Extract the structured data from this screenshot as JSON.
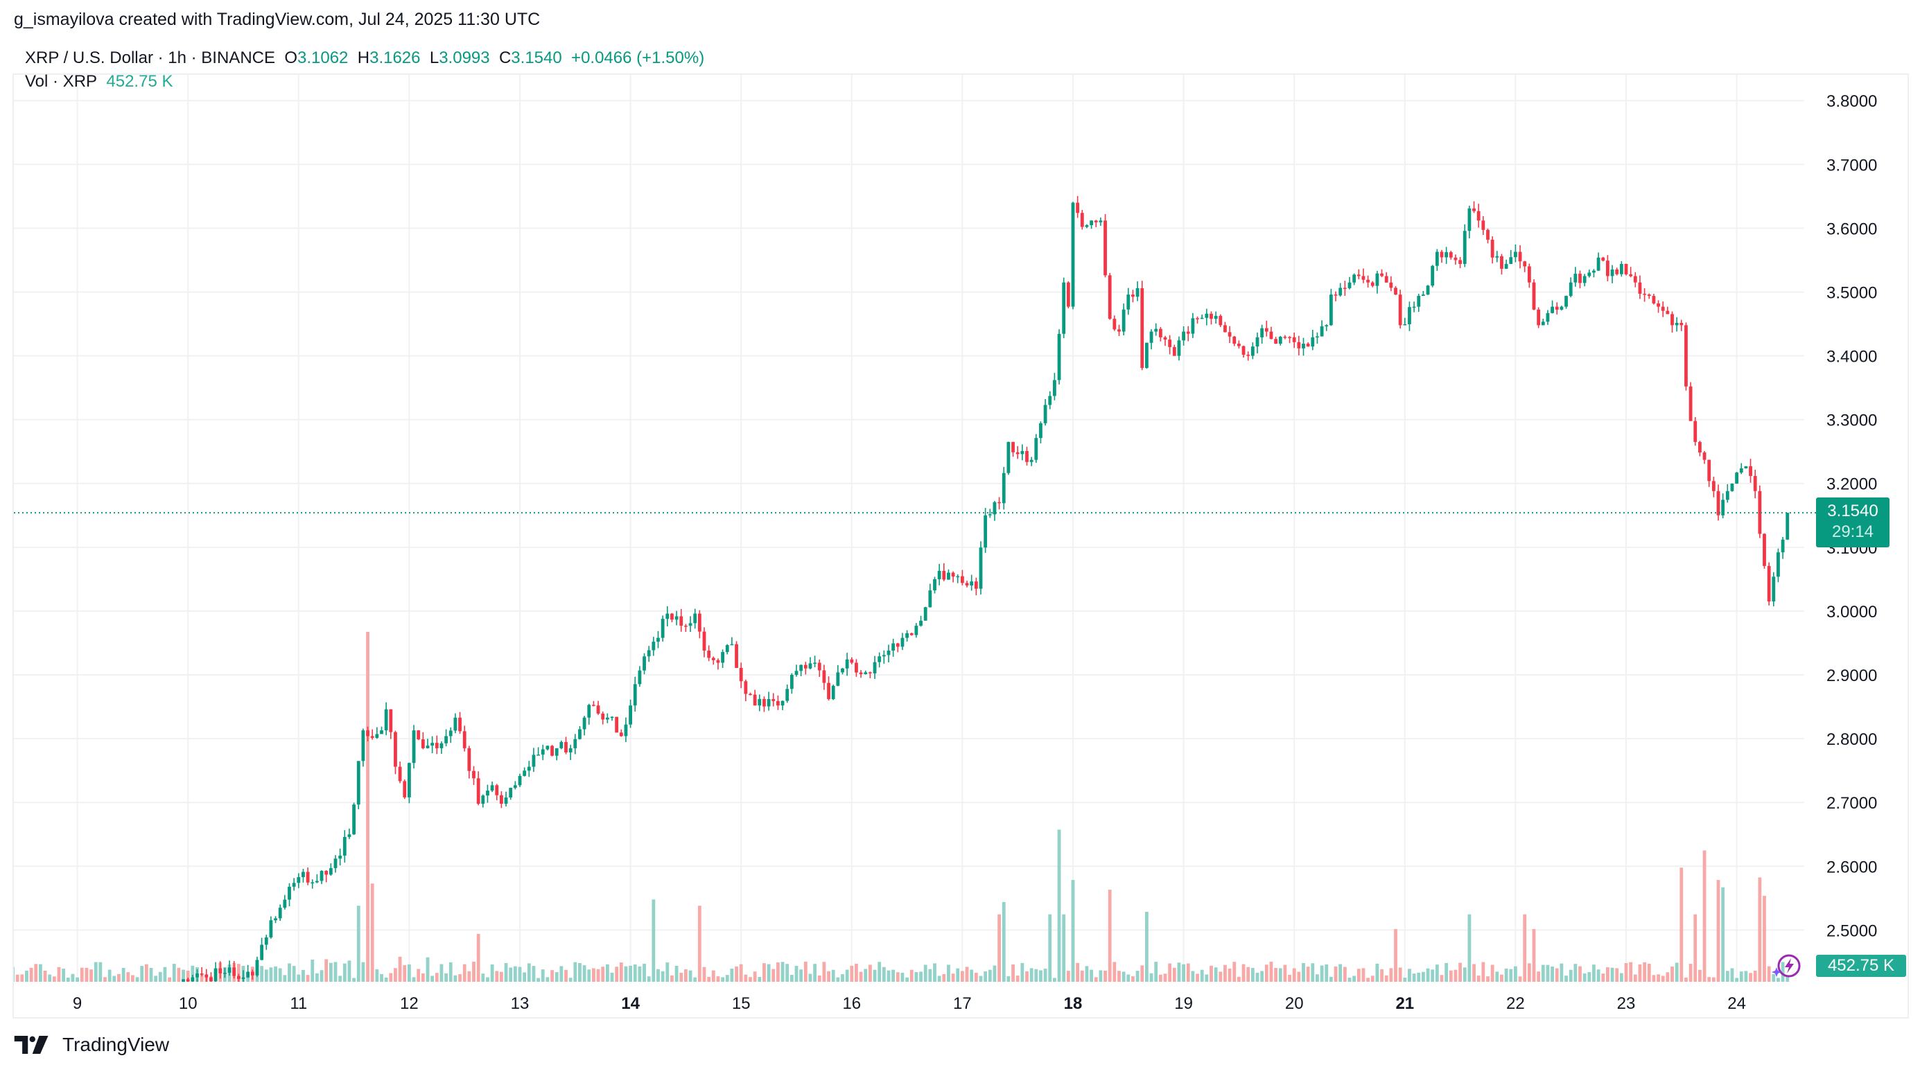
{
  "header": {
    "attribution": "g_ismayilova created with TradingView.com, Jul 24, 2025 11:30 UTC"
  },
  "legend": {
    "symbol": "XRP / U.S. Dollar · 1h · BINANCE",
    "o_label": "O",
    "o": "3.1062",
    "h_label": "H",
    "h": "3.1626",
    "l_label": "L",
    "l": "3.0993",
    "c_label": "C",
    "c": "3.1540",
    "change": "+0.0466 (+1.50%)",
    "vol_label": "Vol · XRP",
    "vol": "452.75 K"
  },
  "price_label": {
    "price": "3.1540",
    "countdown": "29:14"
  },
  "volume_label": "452.75 K",
  "branding": {
    "logo_text": "TradingView"
  },
  "colors": {
    "up": "#089981",
    "down": "#f23645",
    "vol_up": "#92d2c8",
    "vol_down": "#f7a9a7",
    "grid": "#f0f1f3",
    "ai_icon": "#9c27b0"
  },
  "chart_data": {
    "type": "candlestick",
    "interval": "1h",
    "title": "XRP / U.S. Dollar · 1h · BINANCE",
    "y_axis": {
      "position": "right",
      "ticks": [
        "3.8000",
        "3.7000",
        "3.6000",
        "3.5000",
        "3.4000",
        "3.3000",
        "3.2000",
        "3.1000",
        "3.0000",
        "2.9000",
        "2.8000",
        "2.7000",
        "2.6000",
        "2.5000"
      ],
      "range": [
        2.4,
        3.85
      ]
    },
    "x_axis": {
      "ticks": [
        {
          "label": "9",
          "bold": false
        },
        {
          "label": "10",
          "bold": false
        },
        {
          "label": "11",
          "bold": false
        },
        {
          "label": "12",
          "bold": false
        },
        {
          "label": "13",
          "bold": false
        },
        {
          "label": "14",
          "bold": true
        },
        {
          "label": "15",
          "bold": false
        },
        {
          "label": "16",
          "bold": false
        },
        {
          "label": "17",
          "bold": false
        },
        {
          "label": "18",
          "bold": true
        },
        {
          "label": "19",
          "bold": false
        },
        {
          "label": "20",
          "bold": false
        },
        {
          "label": "21",
          "bold": true
        },
        {
          "label": "22",
          "bold": false
        },
        {
          "label": "23",
          "bold": false
        },
        {
          "label": "24",
          "bold": false
        }
      ],
      "range": [
        "07-08 10:00",
        "07-24 11:00"
      ]
    },
    "grid": true,
    "last_close": 3.154,
    "close_path": [
      [
        "07-09 23:00",
        2.423
      ],
      [
        "07-10 08:00",
        2.433
      ],
      [
        "07-10 14:00",
        2.429
      ],
      [
        "07-10 16:00",
        2.477
      ],
      [
        "07-10 20:00",
        2.535
      ],
      [
        "07-11 00:00",
        2.583
      ],
      [
        "07-11 04:00",
        2.577
      ],
      [
        "07-11 08:00",
        2.612
      ],
      [
        "07-11 11:00",
        2.65
      ],
      [
        "07-11 13:00",
        2.765
      ],
      [
        "07-11 14:00",
        2.813
      ],
      [
        "07-11 15:00",
        2.804
      ],
      [
        "07-11 18:00",
        2.813
      ],
      [
        "07-11 19:00",
        2.846
      ],
      [
        "07-11 21:00",
        2.756
      ],
      [
        "07-11 23:00",
        2.708
      ],
      [
        "07-12 01:00",
        2.813
      ],
      [
        "07-12 03:00",
        2.785
      ],
      [
        "07-12 06:00",
        2.785
      ],
      [
        "07-12 08:00",
        2.804
      ],
      [
        "07-12 10:00",
        2.833
      ],
      [
        "07-12 12:00",
        2.785
      ],
      [
        "07-12 15:00",
        2.698
      ],
      [
        "07-12 18:00",
        2.727
      ],
      [
        "07-12 20:00",
        2.698
      ],
      [
        "07-12 23:00",
        2.727
      ],
      [
        "07-13 02:00",
        2.756
      ],
      [
        "07-13 04:00",
        2.775
      ],
      [
        "07-13 08:00",
        2.785
      ],
      [
        "07-13 11:00",
        2.785
      ],
      [
        "07-13 14:00",
        2.833
      ],
      [
        "07-13 16:00",
        2.852
      ],
      [
        "07-13 19:00",
        2.833
      ],
      [
        "07-13 22:00",
        2.804
      ],
      [
        "07-14 00:00",
        2.852
      ],
      [
        "07-14 03:00",
        2.929
      ],
      [
        "07-14 06:00",
        2.958
      ],
      [
        "07-14 08:00",
        2.996
      ],
      [
        "07-14 11:00",
        2.977
      ],
      [
        "07-14 14:00",
        2.996
      ],
      [
        "07-14 16:00",
        2.938
      ],
      [
        "07-14 19:00",
        2.919
      ],
      [
        "07-14 22:00",
        2.948
      ],
      [
        "07-15 00:00",
        2.89
      ],
      [
        "07-15 03:00",
        2.852
      ],
      [
        "07-15 06:00",
        2.862
      ],
      [
        "07-15 08:00",
        2.852
      ],
      [
        "07-15 11:00",
        2.9
      ],
      [
        "07-15 14:00",
        2.91
      ],
      [
        "07-15 16:00",
        2.919
      ],
      [
        "07-15 19:00",
        2.862
      ],
      [
        "07-15 22:00",
        2.91
      ],
      [
        "07-16 00:00",
        2.919
      ],
      [
        "07-16 03:00",
        2.904
      ],
      [
        "07-16 06:00",
        2.929
      ],
      [
        "07-16 08:00",
        2.938
      ],
      [
        "07-16 11:00",
        2.958
      ],
      [
        "07-16 14:00",
        2.977
      ],
      [
        "07-16 16:00",
        3.006
      ],
      [
        "07-16 19:00",
        3.063
      ],
      [
        "07-16 22:00",
        3.054
      ],
      [
        "07-17 00:00",
        3.044
      ],
      [
        "07-17 03:00",
        3.035
      ],
      [
        "07-17 05:00",
        3.15
      ],
      [
        "07-17 08:00",
        3.169
      ],
      [
        "07-17 10:00",
        3.265
      ],
      [
        "07-17 12:00",
        3.246
      ],
      [
        "07-17 15:00",
        3.237
      ],
      [
        "07-17 18:00",
        3.323
      ],
      [
        "07-17 20:00",
        3.362
      ],
      [
        "07-17 22:00",
        3.515
      ],
      [
        "07-17 23:00",
        3.477
      ],
      [
        "07-18 00:00",
        3.64
      ],
      [
        "07-18 02:00",
        3.602
      ],
      [
        "07-18 04:00",
        3.612
      ],
      [
        "07-18 06:00",
        3.612
      ],
      [
        "07-18 08:00",
        3.458
      ],
      [
        "07-18 10:00",
        3.438
      ],
      [
        "07-18 12:00",
        3.496
      ],
      [
        "07-18 14:00",
        3.506
      ],
      [
        "07-18 15:00",
        3.381
      ],
      [
        "07-18 17:00",
        3.438
      ],
      [
        "07-18 19:00",
        3.429
      ],
      [
        "07-18 22:00",
        3.4
      ],
      [
        "07-19 00:00",
        3.438
      ],
      [
        "07-19 03:00",
        3.458
      ],
      [
        "07-19 06:00",
        3.458
      ],
      [
        "07-19 08:00",
        3.448
      ],
      [
        "07-19 11:00",
        3.419
      ],
      [
        "07-19 14:00",
        3.4
      ],
      [
        "07-19 16:00",
        3.429
      ],
      [
        "07-19 18:00",
        3.438
      ],
      [
        "07-19 20:00",
        3.419
      ],
      [
        "07-19 23:00",
        3.429
      ],
      [
        "07-20 02:00",
        3.419
      ],
      [
        "07-20 04:00",
        3.429
      ],
      [
        "07-20 07:00",
        3.448
      ],
      [
        "07-20 08:00",
        3.496
      ],
      [
        "07-20 11:00",
        3.506
      ],
      [
        "07-20 14:00",
        3.525
      ],
      [
        "07-20 16:00",
        3.515
      ],
      [
        "07-20 19:00",
        3.525
      ],
      [
        "07-20 22:00",
        3.496
      ],
      [
        "07-20 23:00",
        3.448
      ],
      [
        "07-21 02:00",
        3.477
      ],
      [
        "07-21 04:00",
        3.496
      ],
      [
        "07-21 07:00",
        3.563
      ],
      [
        "07-21 10:00",
        3.554
      ],
      [
        "07-21 12:00",
        3.544
      ],
      [
        "07-21 14:00",
        3.631
      ],
      [
        "07-21 16:00",
        3.612
      ],
      [
        "07-21 19:00",
        3.554
      ],
      [
        "07-21 22:00",
        3.544
      ],
      [
        "07-22 00:00",
        3.563
      ],
      [
        "07-22 03:00",
        3.515
      ],
      [
        "07-22 05:00",
        3.448
      ],
      [
        "07-22 07:00",
        3.467
      ],
      [
        "07-22 10:00",
        3.477
      ],
      [
        "07-22 12:00",
        3.515
      ],
      [
        "07-22 15:00",
        3.525
      ],
      [
        "07-22 18:00",
        3.554
      ],
      [
        "07-22 20:00",
        3.525
      ],
      [
        "07-22 23:00",
        3.544
      ],
      [
        "07-23 02:00",
        3.515
      ],
      [
        "07-23 04:00",
        3.496
      ],
      [
        "07-23 07:00",
        3.477
      ],
      [
        "07-23 10:00",
        3.448
      ],
      [
        "07-23 12:00",
        3.448
      ],
      [
        "07-23 13:00",
        3.352
      ],
      [
        "07-23 15:00",
        3.265
      ],
      [
        "07-23 17:00",
        3.237
      ],
      [
        "07-23 19:00",
        3.188
      ],
      [
        "07-23 20:00",
        3.15
      ],
      [
        "07-23 22:00",
        3.188
      ],
      [
        "07-24 00:00",
        3.217
      ],
      [
        "07-24 02:00",
        3.227
      ],
      [
        "07-24 04:00",
        3.188
      ],
      [
        "07-24 05:00",
        3.121
      ],
      [
        "07-24 07:00",
        3.015
      ],
      [
        "07-24 09:00",
        3.092
      ],
      [
        "07-24 10:00",
        3.112
      ],
      [
        "07-24 11:00",
        3.154
      ]
    ],
    "volume_unit": "K",
    "volume_last": 452.75,
    "volume_peaks": [
      [
        "07-11 13:00",
        6000
      ],
      [
        "07-11 15:00",
        27600
      ],
      [
        "07-11 16:00",
        7750
      ],
      [
        "07-12 15:00",
        3780
      ],
      [
        "07-14 05:00",
        6490
      ],
      [
        "07-14 15:00",
        6000
      ],
      [
        "07-17 08:00",
        5320
      ],
      [
        "07-17 09:00",
        6290
      ],
      [
        "07-17 19:00",
        5320
      ],
      [
        "07-17 21:00",
        12000
      ],
      [
        "07-17 22:00",
        5320
      ],
      [
        "07-18 00:00",
        8030
      ],
      [
        "07-18 08:00",
        7260
      ],
      [
        "07-18 16:00",
        5520
      ],
      [
        "07-20 22:00",
        4160
      ],
      [
        "07-21 14:00",
        5320
      ],
      [
        "07-22 02:00",
        5320
      ],
      [
        "07-22 04:00",
        4160
      ],
      [
        "07-23 12:00",
        9000
      ],
      [
        "07-23 15:00",
        5320
      ],
      [
        "07-23 17:00",
        10360
      ],
      [
        "07-23 20:00",
        8030
      ],
      [
        "07-23 21:00",
        7450
      ],
      [
        "07-24 05:00",
        8230
      ],
      [
        "07-24 06:00",
        6780
      ]
    ]
  }
}
